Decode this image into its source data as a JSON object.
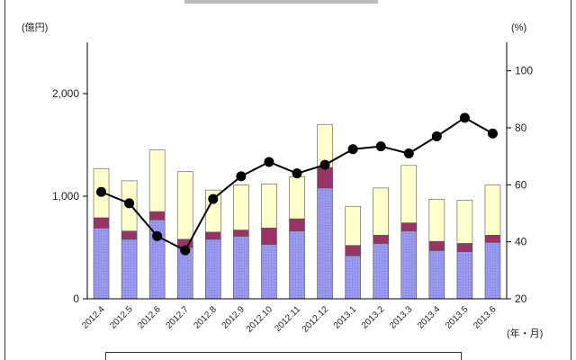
{
  "chart_data": {
    "type": "bar",
    "stacked": true,
    "title": "",
    "y_left_unit": "(億円)",
    "y_right_unit": "(%)",
    "x_unit": "(年・月)",
    "categories": [
      "2012.4",
      "2012.5",
      "2012.6",
      "2012.7",
      "2012.8",
      "2012.9",
      "2012.10",
      "2012.11",
      "2012.12",
      "2013.1",
      "2013.2",
      "2013.3",
      "2013.4",
      "2013.5",
      "2013.6"
    ],
    "series": [
      {
        "kind": "bar",
        "axis": "left",
        "color": "#9999ee",
        "values": [
          690,
          580,
          770,
          500,
          580,
          610,
          530,
          660,
          1080,
          420,
          540,
          660,
          470,
          460,
          550
        ]
      },
      {
        "kind": "bar",
        "axis": "left",
        "color": "#993366",
        "values": [
          100,
          80,
          80,
          80,
          70,
          60,
          160,
          120,
          200,
          100,
          80,
          80,
          90,
          80,
          70
        ]
      },
      {
        "kind": "bar",
        "axis": "left",
        "color": "#ffffcc",
        "values": [
          480,
          490,
          600,
          660,
          410,
          440,
          430,
          410,
          420,
          380,
          460,
          560,
          410,
          420,
          490
        ]
      },
      {
        "kind": "line",
        "axis": "right",
        "color": "#000000",
        "values": [
          57.5,
          53.5,
          42,
          37,
          55,
          63,
          68,
          64,
          67,
          72.5,
          73.5,
          71,
          77,
          83.5,
          78
        ]
      }
    ],
    "y_left": {
      "min": 0,
      "max": 2500,
      "ticks": [
        0,
        1000,
        2000
      ],
      "tick_labels": [
        "0",
        "1,000",
        "2,000"
      ]
    },
    "y_right": {
      "min": 20,
      "max": 110,
      "ticks": [
        20,
        40,
        60,
        80,
        100
      ],
      "tick_labels": [
        "20",
        "40",
        "60",
        "80",
        "100"
      ]
    },
    "grid": false,
    "legend": "bottom"
  }
}
